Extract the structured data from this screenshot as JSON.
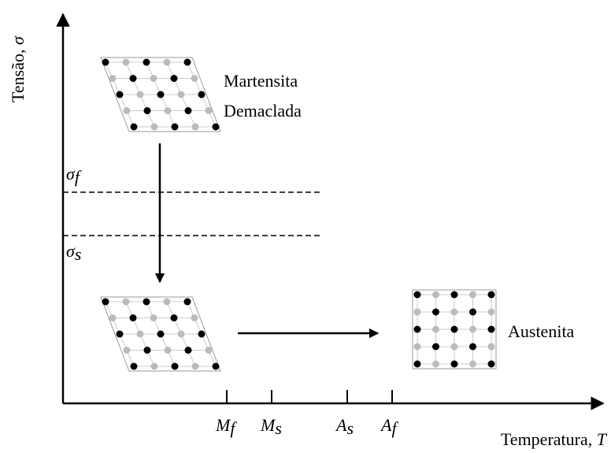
{
  "axes": {
    "y_label": {
      "text": "Tensão,",
      "symbol": "σ"
    },
    "x_label": {
      "text": "Temperatura,",
      "symbol": "T"
    }
  },
  "stress_levels": [
    {
      "symbol": "σ",
      "subscript": "f"
    },
    {
      "symbol": "σ",
      "subscript": "s"
    }
  ],
  "temperatures": [
    {
      "symbol": "M",
      "subscript": "f"
    },
    {
      "symbol": "M",
      "subscript": "s"
    },
    {
      "symbol": "A",
      "subscript": "s"
    },
    {
      "symbol": "A",
      "subscript": "f"
    }
  ],
  "phases": {
    "detwinned": [
      "Martensita",
      "Demaclada"
    ],
    "austenite": "Austenita"
  }
}
